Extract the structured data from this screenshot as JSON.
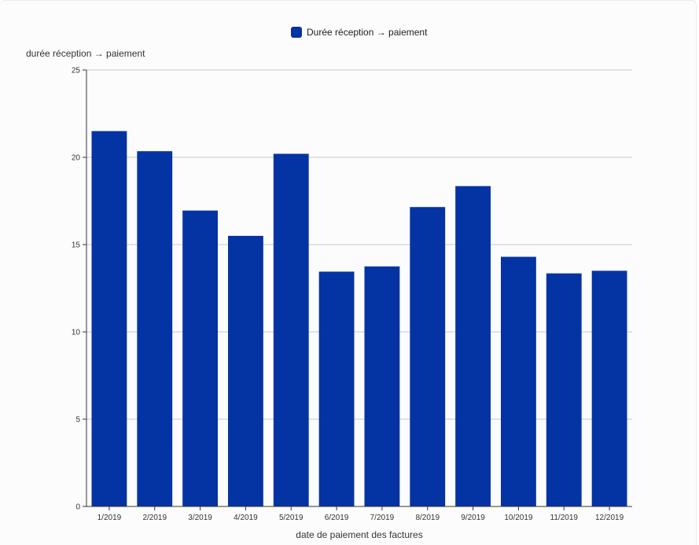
{
  "chart_data": {
    "type": "bar",
    "legend": {
      "label": "Durée réception → paiement",
      "placement": "top-center"
    },
    "ylabel": "durée réception → paiement",
    "xlabel": "date de paiement des factures",
    "ylim": [
      0,
      25
    ],
    "yticks": [
      0,
      5,
      10,
      15,
      20,
      25
    ],
    "grid": true,
    "color": "#0433a3",
    "categories": [
      "1/2019",
      "2/2019",
      "3/2019",
      "4/2019",
      "5/2019",
      "6/2019",
      "7/2019",
      "8/2019",
      "9/2019",
      "10/2019",
      "11/2019",
      "12/2019"
    ],
    "values": [
      21.5,
      20.35,
      16.95,
      15.5,
      20.2,
      13.45,
      13.75,
      17.15,
      18.35,
      14.3,
      13.35,
      13.5
    ]
  }
}
